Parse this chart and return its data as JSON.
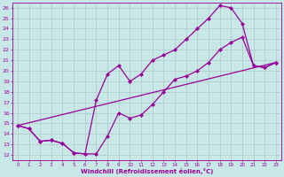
{
  "xlabel": "Windchill (Refroidissement éolien,°C)",
  "bg_color": "#c8e8e8",
  "line_color": "#990099",
  "grid_color": "#b0c8c8",
  "xlim": [
    -0.5,
    23.5
  ],
  "ylim": [
    11.5,
    26.5
  ],
  "xticks": [
    0,
    1,
    2,
    3,
    4,
    5,
    6,
    7,
    8,
    9,
    10,
    11,
    12,
    13,
    14,
    15,
    16,
    17,
    18,
    19,
    20,
    21,
    22,
    23
  ],
  "yticks": [
    12,
    13,
    14,
    15,
    16,
    17,
    18,
    19,
    20,
    21,
    22,
    23,
    24,
    25,
    26
  ],
  "line1_x": [
    0,
    1,
    2,
    3,
    4,
    5,
    6,
    7,
    8,
    9,
    10,
    11,
    12,
    13,
    14,
    15,
    16,
    17,
    18,
    19,
    20,
    21,
    22,
    23
  ],
  "line1_y": [
    14.8,
    14.5,
    13.3,
    13.4,
    13.1,
    12.2,
    12.1,
    12.1,
    13.8,
    16.0,
    15.5,
    15.8,
    16.8,
    18.0,
    19.2,
    19.5,
    20.0,
    20.8,
    22.0,
    22.7,
    23.2,
    20.5,
    20.3,
    20.8
  ],
  "line2_x": [
    0,
    1,
    2,
    3,
    4,
    5,
    6,
    7,
    8,
    9,
    10,
    11,
    12,
    13,
    14,
    15,
    16,
    17,
    18,
    19,
    20,
    21,
    22,
    23
  ],
  "line2_y": [
    14.8,
    14.5,
    13.3,
    13.4,
    13.1,
    12.2,
    12.1,
    17.2,
    19.7,
    20.5,
    19.0,
    19.7,
    21.0,
    21.5,
    22.0,
    23.0,
    24.0,
    25.0,
    26.2,
    26.0,
    24.5,
    20.5,
    20.3,
    20.8
  ],
  "line3_x": [
    0,
    23
  ],
  "line3_y": [
    14.8,
    20.8
  ],
  "marker": "D",
  "markersize": 2.0,
  "linewidth": 0.9
}
